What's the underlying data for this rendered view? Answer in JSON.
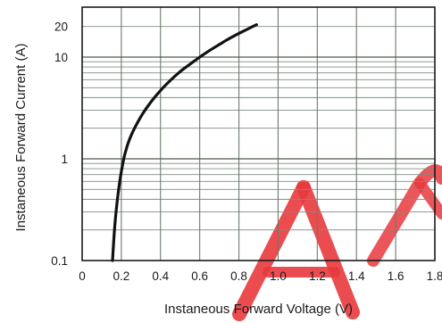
{
  "chart_data": {
    "type": "line",
    "xlabel": "Instaneous Forward Voltage (V)",
    "ylabel": "Instaneous Forward Current  (A)",
    "xlim": [
      0,
      1.8
    ],
    "ylim": [
      0.1,
      28
    ],
    "yscale": "log",
    "grid": true,
    "x_ticks": [
      "0",
      "0.2",
      "0.4",
      "0.6",
      "0.8",
      "1.0",
      "1.2",
      "1.4",
      "1.6",
      "1.8"
    ],
    "y_ticks": [
      "0.1",
      "1",
      "10",
      "20"
    ],
    "series": [
      {
        "color": "#111111",
        "points": [
          {
            "x": 0.155,
            "y": 0.1
          },
          {
            "x": 0.165,
            "y": 0.2
          },
          {
            "x": 0.18,
            "y": 0.4
          },
          {
            "x": 0.2,
            "y": 0.75
          },
          {
            "x": 0.22,
            "y": 1.15
          },
          {
            "x": 0.25,
            "y": 1.7
          },
          {
            "x": 0.3,
            "y": 2.6
          },
          {
            "x": 0.35,
            "y": 3.6
          },
          {
            "x": 0.4,
            "y": 4.7
          },
          {
            "x": 0.45,
            "y": 5.9
          },
          {
            "x": 0.5,
            "y": 7.2
          },
          {
            "x": 0.55,
            "y": 8.5
          },
          {
            "x": 0.6,
            "y": 10.0
          },
          {
            "x": 0.65,
            "y": 11.6
          },
          {
            "x": 0.7,
            "y": 13.3
          },
          {
            "x": 0.75,
            "y": 15.2
          },
          {
            "x": 0.8,
            "y": 17.1
          },
          {
            "x": 0.85,
            "y": 19.1
          },
          {
            "x": 0.89,
            "y": 20.8
          }
        ]
      }
    ],
    "watermark_color": "#e8383d"
  }
}
